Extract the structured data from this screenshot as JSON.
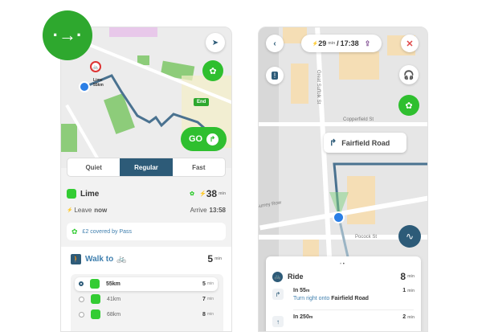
{
  "badge": {
    "icon": "route-arrow-icon",
    "color": "#2ea82e"
  },
  "left": {
    "map": {
      "marker_label": "Lime",
      "marker_range": "55km",
      "end_label": "End",
      "go_label": "GO"
    },
    "route_modes": [
      "Quiet",
      "Regular",
      "Fast"
    ],
    "selected_mode": "Regular",
    "lime": {
      "name": "Lime",
      "duration": "38",
      "duration_unit": "min",
      "leave_label": "Leave",
      "leave_value": "now",
      "arrive_label": "Arrive",
      "arrive_value": "13:58",
      "pass_text": "£2 covered by Pass"
    },
    "walk": {
      "title": "Walk to",
      "duration": "5",
      "duration_unit": "min",
      "options": [
        {
          "range": "55km",
          "walk": "5",
          "unit": "min",
          "selected": true
        },
        {
          "range": "41km",
          "walk": "7",
          "unit": "min",
          "selected": false
        },
        {
          "range": "68km",
          "walk": "8",
          "unit": "min",
          "selected": false
        }
      ]
    }
  },
  "right": {
    "header": {
      "duration": "29",
      "duration_unit": "min",
      "separator": "/",
      "eta": "17:38"
    },
    "streets": {
      "suffolk": "Great Suffolk St",
      "copperfield": "Copperfield St",
      "surrey": "Surrey Row",
      "pocock": "Pocock St"
    },
    "next_turn": "Fairfield Road",
    "sheet": {
      "title": "Ride",
      "duration": "8",
      "duration_unit": "min",
      "steps": [
        {
          "distance": "In 55",
          "distance_unit": "m",
          "instruction": "Turn right onto",
          "road": "Fairfield Road",
          "time": "1",
          "time_unit": "min"
        },
        {
          "distance": "In 250",
          "distance_unit": "m",
          "time": "2",
          "time_unit": "min"
        }
      ]
    }
  },
  "colors": {
    "brand_green": "#2fbf2f",
    "navy": "#2d5b78",
    "route": "#4a7290",
    "link": "#3f7fae",
    "close_red": "#e04848"
  }
}
